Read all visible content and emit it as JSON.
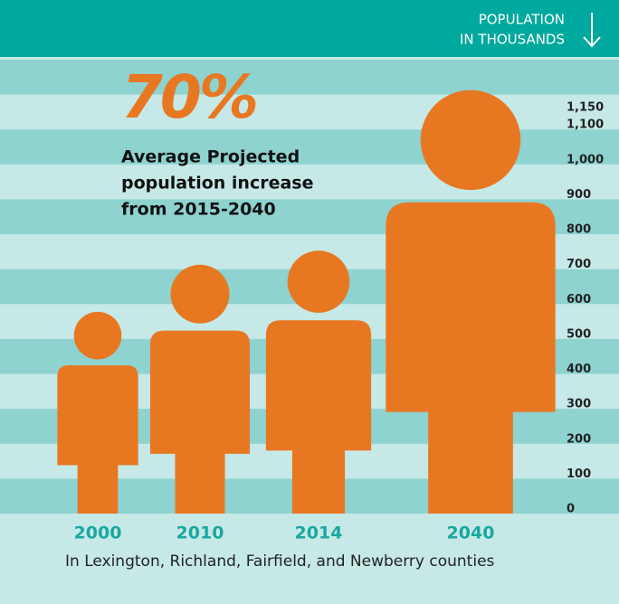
{
  "chart_data": {
    "type": "pictograph",
    "axis_label": [
      "POPULATION",
      "IN THOUSANDS"
    ],
    "headline": "70%",
    "headline_text": [
      "Average Projected",
      "population increase",
      "from 2015-2040"
    ],
    "footnote": "In Lexington, Richland, Fairfield, and Newberry counties",
    "categories": [
      "2000",
      "2010",
      "2014",
      "2040"
    ],
    "values": [
      565,
      700,
      740,
      1200
    ],
    "color": "#e87722",
    "category_color": "#1aa7a0",
    "ylim": [
      0,
      1300
    ],
    "yticks": [
      0,
      100,
      200,
      300,
      400,
      500,
      600,
      700,
      800,
      900,
      {
        "value": 1000,
        "label": "1,000"
      },
      {
        "value": 1100,
        "label": "1,100"
      },
      {
        "value": 1150,
        "label": "1,150"
      }
    ]
  }
}
